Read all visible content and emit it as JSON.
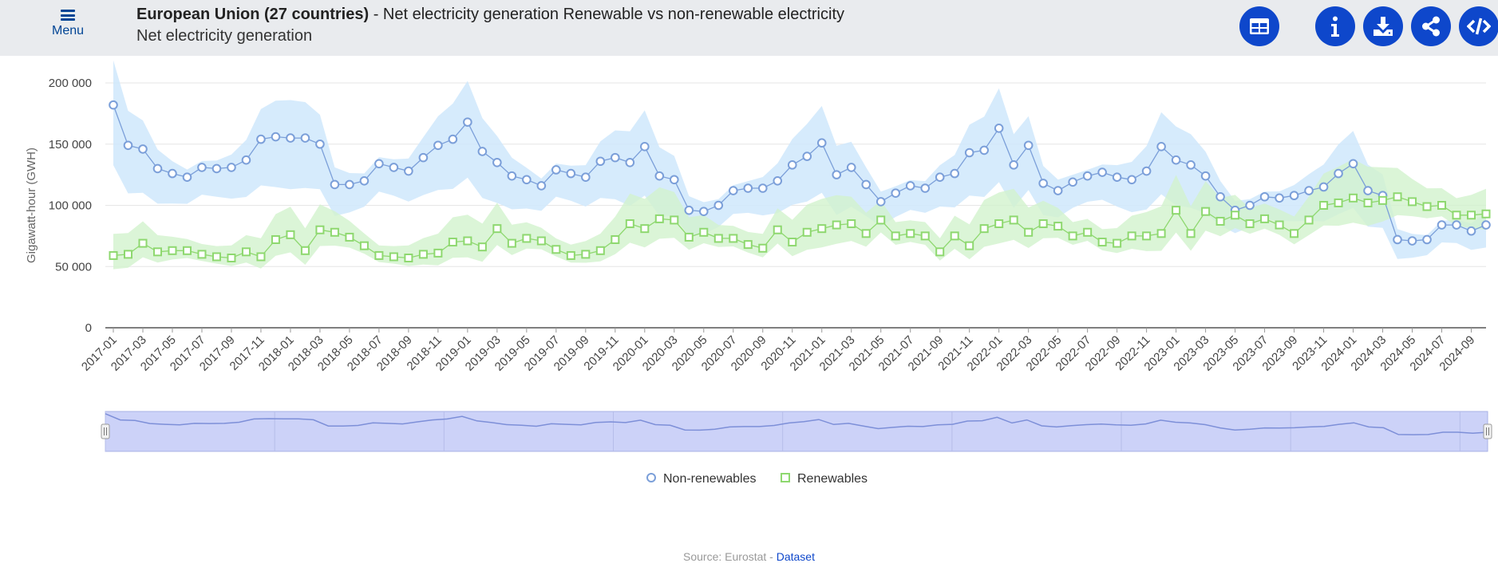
{
  "header": {
    "menu_label": "Menu",
    "title_bold": "European Union (27 countries)",
    "title_rest": " - Net electricity generation Renewable vs non-renewable electricity",
    "subtitle": "Net electricity generation"
  },
  "toolbar": {
    "buttons": [
      {
        "name": "table-view-button",
        "icon": "table-icon"
      },
      {
        "name": "info-button",
        "icon": "info-icon"
      },
      {
        "name": "download-button",
        "icon": "download-icon"
      },
      {
        "name": "share-button",
        "icon": "share-icon"
      },
      {
        "name": "embed-button",
        "icon": "code-icon"
      }
    ],
    "accent_color": "#0e47cb"
  },
  "footer": {
    "source_text": "Source: Eurostat - ",
    "dataset_link": "Dataset"
  },
  "chart_data": {
    "type": "line",
    "title": "",
    "xlabel": "",
    "ylabel": "Gigawatt-hour (GWH)",
    "ylim": [
      0,
      200000
    ],
    "yticks": [
      0,
      50000,
      100000,
      150000,
      200000
    ],
    "ytick_labels": [
      "0",
      "50 000",
      "100 000",
      "150 000",
      "200 000"
    ],
    "x_start": "2017-01",
    "x_tick_labels": [
      "2017-01",
      "2017-03",
      "2017-05",
      "2017-07",
      "2017-09",
      "2017-11",
      "2018-01",
      "2018-03",
      "2018-05",
      "2018-07",
      "2018-09",
      "2018-11",
      "2019-01",
      "2019-03",
      "2019-05",
      "2019-07",
      "2019-09",
      "2019-11",
      "2020-01",
      "2020-03",
      "2020-05",
      "2020-07",
      "2020-09",
      "2020-11",
      "2021-01",
      "2021-03",
      "2021-05",
      "2021-07",
      "2021-09",
      "2021-11",
      "2022-01",
      "2022-03",
      "2022-05",
      "2022-07",
      "2022-09",
      "2022-11",
      "2023-01",
      "2023-03",
      "2023-05",
      "2023-07",
      "2023-09",
      "2023-11",
      "2024-01",
      "2024-03",
      "2024-05",
      "2024-07",
      "2024-09"
    ],
    "legend_position": "bottom-center",
    "grid": true,
    "range_bands": true,
    "navigator": true,
    "series": [
      {
        "name": "Non-renewables",
        "color": "#7b9fd9",
        "band_color": "#cfe8fb",
        "marker": "circle",
        "values": [
          182000,
          149000,
          146000,
          130000,
          126000,
          123000,
          131000,
          130000,
          131000,
          137000,
          154000,
          156000,
          155000,
          155000,
          150000,
          117000,
          117000,
          120000,
          134000,
          131000,
          128000,
          139000,
          149000,
          154000,
          168000,
          144000,
          135000,
          124000,
          121000,
          116000,
          129000,
          126000,
          123000,
          136000,
          139000,
          135000,
          148000,
          124000,
          121000,
          96000,
          95000,
          100000,
          112000,
          114000,
          114000,
          120000,
          133000,
          140000,
          151000,
          125000,
          131000,
          117000,
          103000,
          110000,
          116000,
          114000,
          123000,
          126000,
          143000,
          145000,
          163000,
          133000,
          149000,
          118000,
          112000,
          119000,
          124000,
          127000,
          123000,
          121000,
          128000,
          148000,
          137000,
          133000,
          124000,
          107000,
          96000,
          100000,
          107000,
          106000,
          108000,
          112000,
          115000,
          126000,
          134000,
          112000,
          108000,
          72000,
          71000,
          72000,
          84000,
          84000,
          79000,
          84000
        ]
      },
      {
        "name": "Renewables",
        "color": "#8ed86f",
        "band_color": "#d2f2cd",
        "marker": "square",
        "values": [
          59000,
          60000,
          69000,
          62000,
          63000,
          63000,
          60000,
          58000,
          57000,
          62000,
          58000,
          72000,
          76000,
          63000,
          80000,
          78000,
          74000,
          67000,
          59000,
          58000,
          57000,
          60000,
          61000,
          70000,
          71000,
          66000,
          81000,
          69000,
          73000,
          71000,
          64000,
          59000,
          60000,
          63000,
          72000,
          85000,
          81000,
          89000,
          88000,
          74000,
          78000,
          73000,
          73000,
          68000,
          65000,
          80000,
          70000,
          78000,
          81000,
          84000,
          85000,
          77000,
          88000,
          75000,
          77000,
          75000,
          62000,
          75000,
          67000,
          81000,
          85000,
          88000,
          78000,
          85000,
          83000,
          75000,
          78000,
          70000,
          69000,
          75000,
          75000,
          77000,
          96000,
          77000,
          95000,
          87000,
          92000,
          85000,
          89000,
          84000,
          77000,
          88000,
          100000,
          102000,
          106000,
          102000,
          104000,
          107000,
          103000,
          99000,
          100000,
          92000,
          92000,
          93000
        ]
      }
    ]
  }
}
